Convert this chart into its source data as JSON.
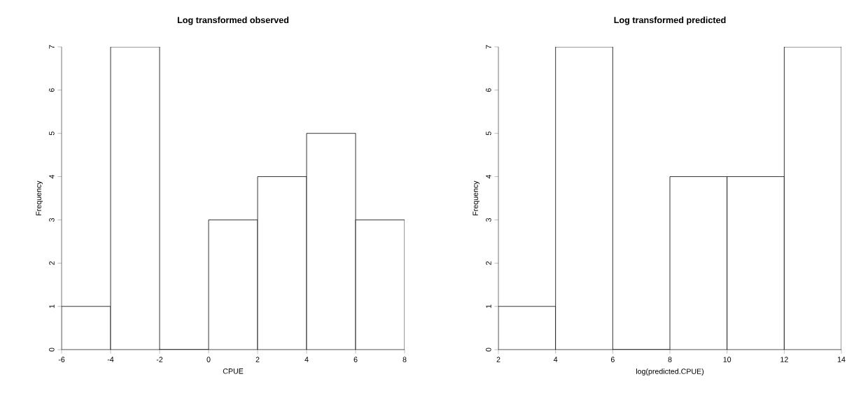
{
  "chart_data": [
    {
      "type": "histogram",
      "title": "Log transformed observed",
      "xlabel": "CPUE",
      "ylabel": "Frequency",
      "bins": [
        -6,
        -4,
        -2,
        0,
        2,
        4,
        6,
        8
      ],
      "values": [
        1,
        7,
        0,
        3,
        4,
        5,
        3
      ],
      "xlim": [
        -6,
        8
      ],
      "ylim": [
        0,
        7
      ],
      "xticks": [
        -6,
        -4,
        -2,
        0,
        2,
        4,
        6,
        8
      ],
      "yticks": [
        0,
        1,
        2,
        3,
        4,
        5,
        6,
        7
      ]
    },
    {
      "type": "histogram",
      "title": "Log transformed predicted",
      "xlabel": "log(predicted.CPUE)",
      "ylabel": "Frequency",
      "bins": [
        2,
        4,
        6,
        8,
        10,
        12,
        14
      ],
      "values": [
        1,
        7,
        0,
        4,
        4,
        7
      ],
      "xlim": [
        2,
        14
      ],
      "ylim": [
        0,
        7
      ],
      "xticks": [
        2,
        4,
        6,
        8,
        10,
        12,
        14
      ],
      "yticks": [
        0,
        1,
        2,
        3,
        4,
        5,
        6,
        7
      ]
    }
  ]
}
